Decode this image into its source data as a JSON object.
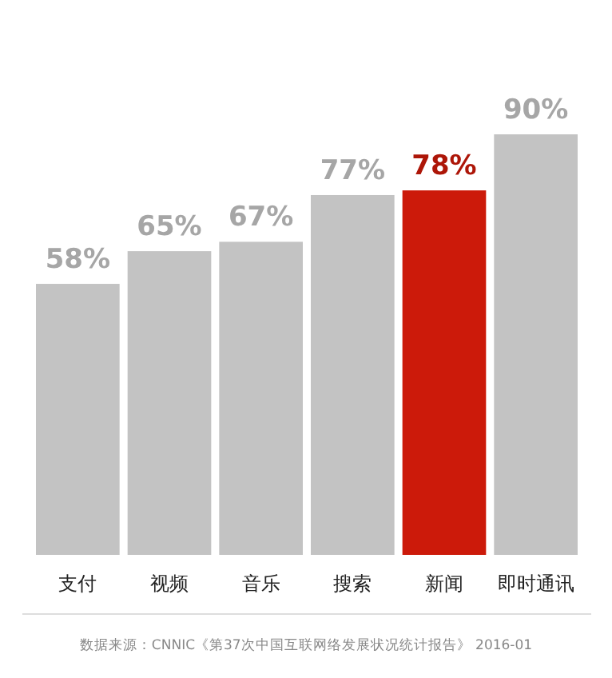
{
  "chart_data": {
    "type": "bar",
    "categories": [
      "支付",
      "视频",
      "音乐",
      "搜索",
      "新闻",
      "即时通讯"
    ],
    "values": [
      58,
      65,
      67,
      77,
      78,
      90
    ],
    "colors": [
      "#c3c3c3",
      "#c3c3c3",
      "#c3c3c3",
      "#c3c3c3",
      "#cc1a0a",
      "#c3c3c3"
    ],
    "value_labels": [
      "58%",
      "65%",
      "67%",
      "77%",
      "78%",
      "90%"
    ],
    "annotations": [
      "数据来源：CNNIC《第37次中国互联网络发展状况统计报告》 2016-01"
    ]
  }
}
